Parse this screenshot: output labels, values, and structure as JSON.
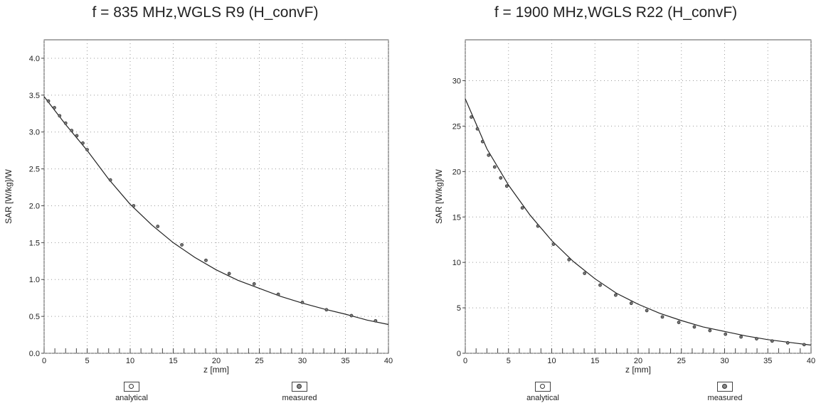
{
  "chart_data": [
    {
      "type": "line",
      "title": "f = 835 MHz,WGLS R9 (H_convF)",
      "xlabel": "z [mm]",
      "ylabel": "SAR [W/kg]/W",
      "xlim": [
        0,
        40
      ],
      "ylim": [
        0,
        4.25
      ],
      "xticks": [
        "0",
        "5",
        "10",
        "15",
        "20",
        "25",
        "30",
        "35",
        "40"
      ],
      "yticks": [
        "0.0",
        "0.5",
        "1.0",
        "1.5",
        "2.0",
        "2.5",
        "3.0",
        "3.5",
        "4.0"
      ],
      "grid": true,
      "legend_position": "bottom",
      "series": [
        {
          "name": "analytical",
          "x": [
            0,
            2.5,
            5,
            7.5,
            10,
            12.5,
            15,
            17.5,
            20,
            22.5,
            25,
            27.5,
            30,
            32.5,
            35,
            37.5,
            40
          ],
          "values": [
            3.48,
            3.1,
            2.75,
            2.36,
            2.02,
            1.74,
            1.5,
            1.3,
            1.13,
            0.99,
            0.88,
            0.77,
            0.68,
            0.6,
            0.53,
            0.45,
            0.39
          ]
        },
        {
          "name": "measured",
          "x": [
            0.5,
            1.2,
            1.8,
            2.5,
            3.2,
            3.8,
            4.5,
            5.0,
            7.7,
            10.4,
            13.2,
            16.0,
            18.8,
            21.5,
            24.4,
            27.2,
            30.0,
            32.8,
            35.7,
            38.5
          ],
          "values": [
            3.42,
            3.33,
            3.22,
            3.12,
            3.02,
            2.95,
            2.85,
            2.76,
            2.35,
            2.0,
            1.72,
            1.47,
            1.26,
            1.08,
            0.94,
            0.8,
            0.69,
            0.59,
            0.51,
            0.44
          ]
        }
      ]
    },
    {
      "type": "line",
      "title": "f = 1900 MHz,WGLS R22 (H_convF)",
      "xlabel": "z [mm]",
      "ylabel": "SAR [W/kg]/W",
      "xlim": [
        0,
        40
      ],
      "ylim": [
        0,
        34.5
      ],
      "xticks": [
        "0",
        "5",
        "10",
        "15",
        "20",
        "25",
        "30",
        "35",
        "40"
      ],
      "yticks": [
        "0",
        "5",
        "10",
        "15",
        "20",
        "25",
        "30"
      ],
      "grid": true,
      "legend_position": "bottom",
      "series": [
        {
          "name": "analytical",
          "x": [
            0,
            2.5,
            5,
            7.5,
            10,
            12.5,
            15,
            17.5,
            20,
            22.5,
            25,
            27.5,
            30,
            32.5,
            35,
            37.5,
            40
          ],
          "values": [
            28.0,
            22.5,
            18.5,
            15.2,
            12.4,
            10.1,
            8.2,
            6.6,
            5.4,
            4.4,
            3.6,
            2.9,
            2.4,
            1.9,
            1.5,
            1.2,
            0.9
          ]
        },
        {
          "name": "measured",
          "x": [
            0.7,
            1.4,
            2.0,
            2.7,
            3.4,
            4.1,
            4.8,
            6.6,
            8.4,
            10.2,
            12.0,
            13.8,
            15.6,
            17.4,
            19.2,
            21.0,
            22.8,
            24.7,
            26.5,
            28.3,
            30.1,
            31.9,
            33.7,
            35.5,
            37.3,
            39.2
          ],
          "values": [
            26.0,
            24.7,
            23.3,
            21.8,
            20.5,
            19.3,
            18.4,
            16.0,
            14.0,
            12.0,
            10.3,
            8.8,
            7.5,
            6.4,
            5.5,
            4.7,
            4.0,
            3.4,
            2.9,
            2.5,
            2.1,
            1.8,
            1.6,
            1.35,
            1.15,
            0.95
          ]
        }
      ]
    }
  ],
  "legend": {
    "analytical_label": "analytical",
    "measured_label": "measured"
  }
}
